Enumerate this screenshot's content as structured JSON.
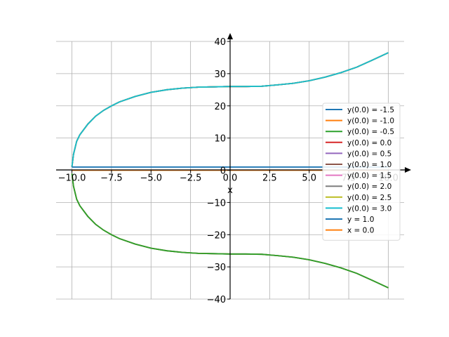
{
  "chart_data": {
    "type": "line",
    "xlabel": "x",
    "xlim": [
      -11.0,
      11.0
    ],
    "ylim": [
      -40,
      40
    ],
    "grid": true,
    "legend_position": "right",
    "x_ticks": [
      {
        "value": -10.0,
        "label": "−10.0"
      },
      {
        "value": -7.5,
        "label": "−7.5"
      },
      {
        "value": -5.0,
        "label": "−5.0"
      },
      {
        "value": -2.5,
        "label": "−2.5"
      },
      {
        "value": 0.0,
        "label": "0.0"
      },
      {
        "value": 2.5,
        "label": "2.5"
      },
      {
        "value": 5.0,
        "label": "5.0"
      },
      {
        "value": 7.5,
        "label": "7.5"
      },
      {
        "value": 10.0,
        "label": "10.0"
      }
    ],
    "y_ticks": [
      {
        "value": 40,
        "label": "40"
      },
      {
        "value": 30,
        "label": "30"
      },
      {
        "value": 20,
        "label": "20"
      },
      {
        "value": 10,
        "label": "10"
      },
      {
        "value": 0,
        "label": "0"
      },
      {
        "value": -10,
        "label": "−10"
      },
      {
        "value": -20,
        "label": "−20"
      },
      {
        "value": -30,
        "label": "−30"
      },
      {
        "value": -40,
        "label": "−40"
      }
    ],
    "series": [
      {
        "name": "y(0.0) = -1.5",
        "color": "#1f77b4",
        "branch": -1
      },
      {
        "name": "y(0.0) = -1.0",
        "color": "#ff7f0e",
        "branch": -1
      },
      {
        "name": "y(0.0) = -0.5",
        "color": "#2ca02c",
        "branch": -1
      },
      {
        "name": "y(0.0) = 0.0",
        "color": "#d62728",
        "branch": 1
      },
      {
        "name": "y(0.0) = 0.5",
        "color": "#9467bd",
        "branch": 1
      },
      {
        "name": "y(0.0) = 1.0",
        "color": "#8c564b",
        "branch": 1
      },
      {
        "name": "y(0.0) = 1.5",
        "color": "#e377c2",
        "branch": 1
      },
      {
        "name": "y(0.0) = 2.0",
        "color": "#7f7f7f",
        "branch": 1
      },
      {
        "name": "y(0.0) = 2.5",
        "color": "#bcbd22",
        "branch": 1
      },
      {
        "name": "y(0.0) = 3.0",
        "color": "#17becf",
        "branch": 1
      },
      {
        "name": "y = 1.0",
        "color": "#1f77b4",
        "constant_y": 1.0
      },
      {
        "name": "x = 0.0",
        "color": "#ff7f0e",
        "constant_y": 0.0
      }
    ],
    "curve_x_range": [
      -10.0,
      10.0
    ],
    "curve_points": [
      {
        "x": -10.0,
        "y": 1.0
      },
      {
        "x": -9.9,
        "y": 5.0
      },
      {
        "x": -9.7,
        "y": 9.0
      },
      {
        "x": -9.5,
        "y": 11.0
      },
      {
        "x": -9.0,
        "y": 14.3
      },
      {
        "x": -8.5,
        "y": 16.8
      },
      {
        "x": -8.0,
        "y": 18.6
      },
      {
        "x": -7.5,
        "y": 20.0
      },
      {
        "x": -7.0,
        "y": 21.2
      },
      {
        "x": -6.0,
        "y": 22.9
      },
      {
        "x": -5.0,
        "y": 24.2
      },
      {
        "x": -4.0,
        "y": 25.0
      },
      {
        "x": -3.0,
        "y": 25.5
      },
      {
        "x": -2.0,
        "y": 25.8
      },
      {
        "x": -1.0,
        "y": 25.9
      },
      {
        "x": 0.0,
        "y": 26.0
      },
      {
        "x": 1.0,
        "y": 26.0
      },
      {
        "x": 2.0,
        "y": 26.1
      },
      {
        "x": 3.0,
        "y": 26.5
      },
      {
        "x": 4.0,
        "y": 27.0
      },
      {
        "x": 5.0,
        "y": 27.8
      },
      {
        "x": 6.0,
        "y": 28.9
      },
      {
        "x": 7.0,
        "y": 30.3
      },
      {
        "x": 8.0,
        "y": 32.0
      },
      {
        "x": 9.0,
        "y": 34.2
      },
      {
        "x": 10.0,
        "y": 36.5
      }
    ]
  }
}
